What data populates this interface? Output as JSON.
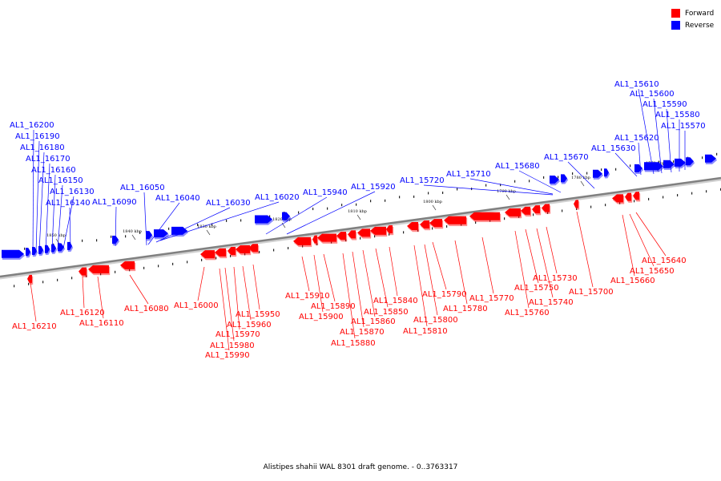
{
  "legend": {
    "forward": {
      "label": "Forward",
      "color": "#ff0000"
    },
    "reverse": {
      "label": "Reverse",
      "color": "#0000ff"
    }
  },
  "caption": "Alistipes shahii WAL 8301 draft genome. - 0..3763317",
  "colors": {
    "forward": "#ff0000",
    "reverse": "#0000ff",
    "backbone": "#808080"
  },
  "scale": {
    "unit": "kbp",
    "ticks": [
      "1770 kbp",
      "1780 kbp",
      "1790 kbp",
      "1800 kbp",
      "1810 kbp",
      "1820 kbp",
      "1830 kbp",
      "1840 kbp",
      "1850 kbp"
    ]
  },
  "genes": {
    "reverse": [
      "AL1_15570",
      "AL1_15580",
      "AL1_15590",
      "AL1_15600",
      "AL1_15610",
      "AL1_15620",
      "AL1_15630",
      "AL1_15670",
      "AL1_15680",
      "AL1_15710",
      "AL1_15720",
      "AL1_15920",
      "AL1_15940",
      "AL1_16020",
      "AL1_16030",
      "AL1_16040",
      "AL1_16050",
      "AL1_16090",
      "AL1_16140",
      "AL1_16130",
      "AL1_16150",
      "AL1_16160",
      "AL1_16170",
      "AL1_16180",
      "AL1_16190",
      "AL1_16200"
    ],
    "forward": [
      "AL1_15640",
      "AL1_15650",
      "AL1_15660",
      "AL1_15700",
      "AL1_15730",
      "AL1_15740",
      "AL1_15750",
      "AL1_15760",
      "AL1_15770",
      "AL1_15780",
      "AL1_15790",
      "AL1_15800",
      "AL1_15810",
      "AL1_15840",
      "AL1_15850",
      "AL1_15860",
      "AL1_15870",
      "AL1_15880",
      "AL1_15890",
      "AL1_15900",
      "AL1_15910",
      "AL1_15950",
      "AL1_15960",
      "AL1_15970",
      "AL1_15980",
      "AL1_15990",
      "AL1_16000",
      "AL1_16080",
      "AL1_16110",
      "AL1_16120",
      "AL1_16210"
    ]
  }
}
